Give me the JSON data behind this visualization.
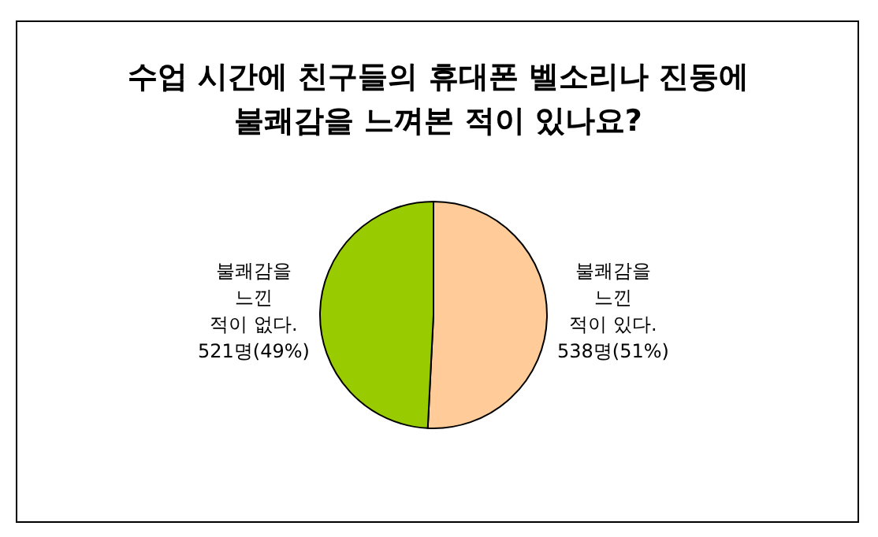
{
  "chart_data": {
    "type": "pie",
    "title": "수업 시간에 친구들의 휴대폰 벨소리나 진동에\n불쾌감을 느껴본 적이 있나요?",
    "categories": [
      "불쾌감을 느낀 적이 있다.",
      "불쾌감을 느낀 적이 없다."
    ],
    "values": [
      538,
      521
    ],
    "value_labels": [
      "538명(51%)",
      "521명(49%)"
    ],
    "colors": [
      "#ffcc99",
      "#99cc00"
    ]
  }
}
